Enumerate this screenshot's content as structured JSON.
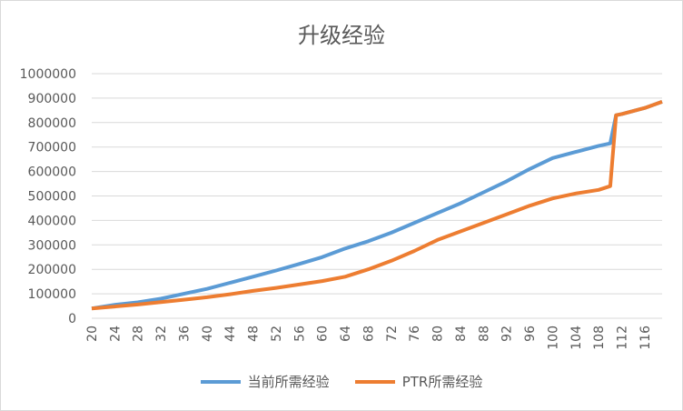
{
  "chart_data": {
    "type": "line",
    "title": "升级经验",
    "xlabel": "",
    "ylabel": "",
    "ylim": [
      0,
      1000000
    ],
    "yticks": [
      0,
      100000,
      200000,
      300000,
      400000,
      500000,
      600000,
      700000,
      800000,
      900000,
      1000000
    ],
    "xlim": [
      20,
      119
    ],
    "xticks": [
      20,
      24,
      28,
      32,
      36,
      40,
      44,
      48,
      52,
      56,
      60,
      64,
      68,
      72,
      76,
      80,
      84,
      88,
      92,
      96,
      100,
      104,
      108,
      112,
      116
    ],
    "grid": true,
    "legend_position": "bottom",
    "series": [
      {
        "name": "当前所需经验",
        "color": "#5b9bd5",
        "points": [
          [
            20,
            40000
          ],
          [
            24,
            55000
          ],
          [
            28,
            65000
          ],
          [
            32,
            80000
          ],
          [
            36,
            100000
          ],
          [
            40,
            120000
          ],
          [
            44,
            145000
          ],
          [
            48,
            170000
          ],
          [
            52,
            195000
          ],
          [
            56,
            222000
          ],
          [
            60,
            250000
          ],
          [
            64,
            285000
          ],
          [
            68,
            315000
          ],
          [
            72,
            350000
          ],
          [
            76,
            390000
          ],
          [
            80,
            430000
          ],
          [
            84,
            470000
          ],
          [
            88,
            515000
          ],
          [
            92,
            560000
          ],
          [
            96,
            610000
          ],
          [
            100,
            655000
          ],
          [
            104,
            680000
          ],
          [
            108,
            705000
          ],
          [
            110,
            715000
          ],
          [
            111,
            830000
          ],
          [
            112,
            835000
          ],
          [
            116,
            860000
          ],
          [
            119,
            885000
          ]
        ]
      },
      {
        "name": "PTR所需经验",
        "color": "#ed7d31",
        "points": [
          [
            20,
            40000
          ],
          [
            24,
            48000
          ],
          [
            28,
            56000
          ],
          [
            32,
            66000
          ],
          [
            36,
            76000
          ],
          [
            40,
            86000
          ],
          [
            44,
            98000
          ],
          [
            48,
            112000
          ],
          [
            52,
            124000
          ],
          [
            56,
            138000
          ],
          [
            60,
            152000
          ],
          [
            64,
            170000
          ],
          [
            68,
            200000
          ],
          [
            72,
            235000
          ],
          [
            76,
            275000
          ],
          [
            80,
            320000
          ],
          [
            84,
            355000
          ],
          [
            88,
            390000
          ],
          [
            92,
            425000
          ],
          [
            96,
            460000
          ],
          [
            100,
            490000
          ],
          [
            104,
            510000
          ],
          [
            108,
            525000
          ],
          [
            110,
            540000
          ],
          [
            111,
            830000
          ],
          [
            112,
            835000
          ],
          [
            116,
            860000
          ],
          [
            119,
            885000
          ]
        ]
      }
    ]
  }
}
